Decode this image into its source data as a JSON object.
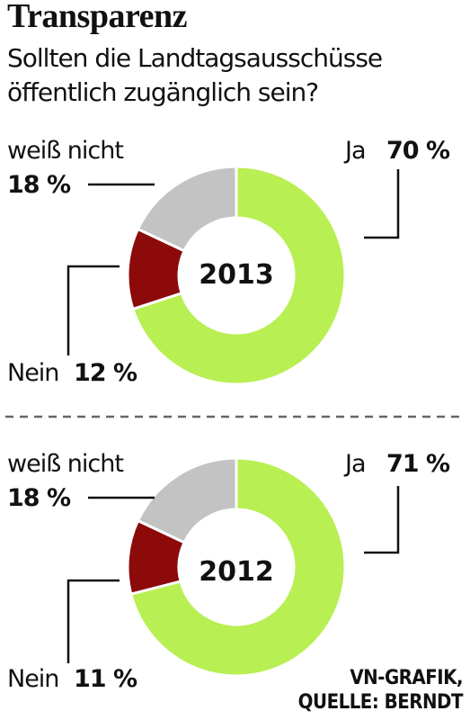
{
  "title": "Transparenz",
  "subtitle": "Sollten die Landtagsausschüsse öffentlich zugänglich sein?",
  "credit_line1": "VN-GRAFIK,",
  "credit_line2": "QUELLE: BERNDT",
  "chart_data": [
    {
      "type": "pie",
      "center_label": "2013",
      "categories": [
        "Ja",
        "Nein",
        "weiß nicht"
      ],
      "values": [
        70,
        12,
        18
      ],
      "value_labels": [
        "70 %",
        "12 %",
        "18 %"
      ],
      "colors": [
        "#b8ef52",
        "#8c0a0a",
        "#c3c3c3"
      ]
    },
    {
      "type": "pie",
      "center_label": "2012",
      "categories": [
        "Ja",
        "Nein",
        "weiß nicht"
      ],
      "values": [
        71,
        11,
        18
      ],
      "value_labels": [
        "71 %",
        "11 %",
        "18 %"
      ],
      "colors": [
        "#b8ef52",
        "#8c0a0a",
        "#c3c3c3"
      ]
    }
  ]
}
